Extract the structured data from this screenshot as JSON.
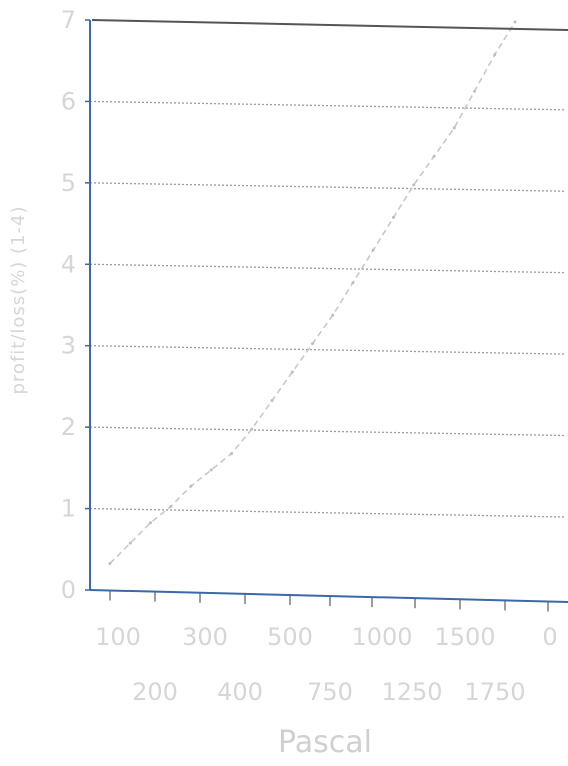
{
  "chart_data": {
    "type": "line",
    "title": "",
    "xlabel": "Pascal",
    "ylabel": "profit/loss(%) (1-4)",
    "x_tick_labels_upper": [
      "100",
      "300",
      "500",
      "1000",
      "1500",
      "0"
    ],
    "x_tick_labels_lower": [
      "200",
      "400",
      "750",
      "1250",
      "1750"
    ],
    "ylim": [
      0,
      7
    ],
    "y_ticks": [
      0,
      1,
      2,
      3,
      4,
      5,
      6,
      7
    ],
    "grid": true,
    "series": [
      {
        "x": [
          100,
          150,
          200,
          250,
          300,
          350,
          400,
          450,
          500,
          550,
          600,
          650,
          700,
          750,
          800,
          850,
          900,
          950,
          1000,
          1050,
          1100
        ],
        "y": [
          0.35,
          0.6,
          0.85,
          1.05,
          1.3,
          1.5,
          1.7,
          2.0,
          2.35,
          2.7,
          3.05,
          3.4,
          3.8,
          4.2,
          4.6,
          5.0,
          5.35,
          5.7,
          6.15,
          6.6,
          7.0
        ]
      }
    ],
    "colors": {
      "line": "#c8c8c8",
      "grid": "#9a9a9a",
      "axis": "#3a68a8",
      "top_border": "#555555"
    }
  }
}
